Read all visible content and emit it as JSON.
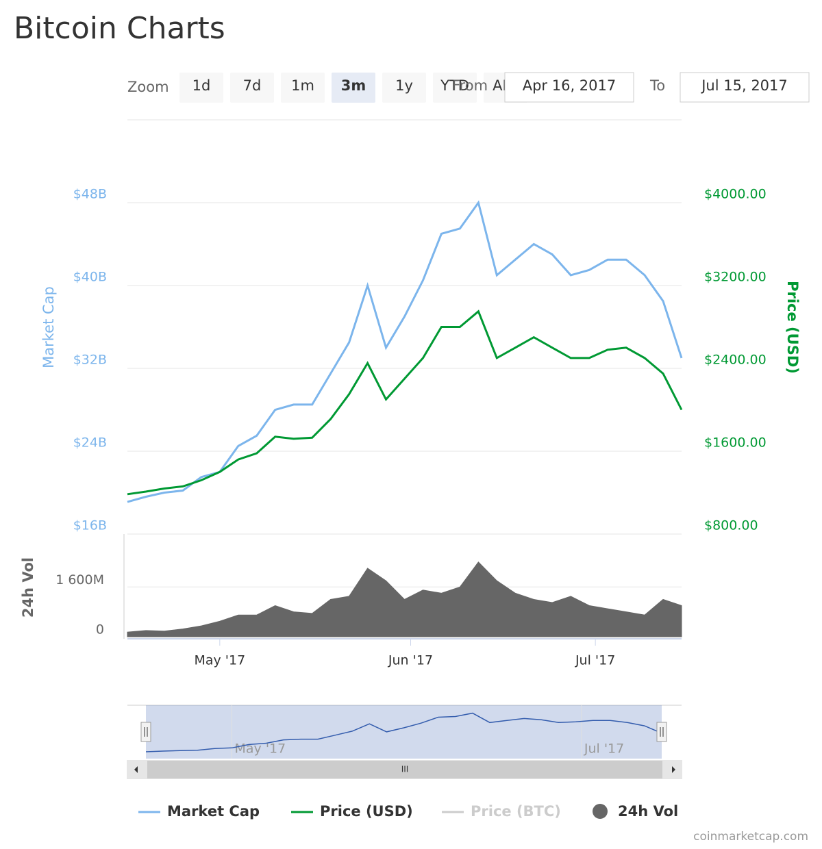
{
  "header": {
    "title": "Bitcoin Charts"
  },
  "controls": {
    "zoom_label": "Zoom",
    "zoom_buttons": [
      "1d",
      "7d",
      "1m",
      "3m",
      "1y",
      "YTD",
      "ALL"
    ],
    "active_button": "3m",
    "from_label": "From",
    "from": "Apr 16, 2017",
    "to_label": "To",
    "to": "Jul 15, 2017"
  },
  "chart_data": [
    {
      "type": "line",
      "ylabel": "Market Cap",
      "y2label": "Price (USD)",
      "x": [
        "2017-04-16",
        "2017-04-19",
        "2017-04-22",
        "2017-04-25",
        "2017-04-28",
        "2017-05-01",
        "2017-05-04",
        "2017-05-07",
        "2017-05-10",
        "2017-05-13",
        "2017-05-16",
        "2017-05-19",
        "2017-05-22",
        "2017-05-25",
        "2017-05-28",
        "2017-05-31",
        "2017-06-03",
        "2017-06-06",
        "2017-06-09",
        "2017-06-12",
        "2017-06-15",
        "2017-06-18",
        "2017-06-21",
        "2017-06-24",
        "2017-06-27",
        "2017-06-30",
        "2017-07-03",
        "2017-07-06",
        "2017-07-09",
        "2017-07-12",
        "2017-07-15"
      ],
      "xlim": [
        "2017-04-16",
        "2017-07-15"
      ],
      "xticks": [
        {
          "value": "2017-05-01",
          "label": "May '17"
        },
        {
          "value": "2017-06-01",
          "label": "Jun '17"
        },
        {
          "value": "2017-07-01",
          "label": "Jul '17"
        }
      ],
      "ylim": [
        16,
        56
      ],
      "yticks": [
        {
          "value": 16,
          "label": "$16B"
        },
        {
          "value": 24,
          "label": "$24B"
        },
        {
          "value": 32,
          "label": "$32B"
        },
        {
          "value": 40,
          "label": "$40B"
        },
        {
          "value": 48,
          "label": "$48B"
        }
      ],
      "y2lim": [
        800,
        4800
      ],
      "y2ticks": [
        {
          "value": 800,
          "label": "$800.00"
        },
        {
          "value": 1600,
          "label": "$1600.00"
        },
        {
          "value": 2400,
          "label": "$2400.00"
        },
        {
          "value": 3200,
          "label": "$3200.00"
        },
        {
          "value": 4000,
          "label": "$4000.00"
        }
      ],
      "grid": true,
      "series": [
        {
          "name": "Market Cap",
          "color": "#7cb5ec",
          "values": [
            19.1,
            19.6,
            20.0,
            20.2,
            21.5,
            22.0,
            24.5,
            25.5,
            28.0,
            28.5,
            28.5,
            31.5,
            34.5,
            40.0,
            34.0,
            37.0,
            40.5,
            45.0,
            45.5,
            48.0,
            41.0,
            42.5,
            44.0,
            43.0,
            41.0,
            41.5,
            42.5,
            42.5,
            41.0,
            38.5,
            33.0
          ]
        },
        {
          "name": "Price (USD)",
          "color": "#009933",
          "axis": "y2",
          "values": [
            1185,
            1210,
            1240,
            1260,
            1320,
            1400,
            1520,
            1580,
            1740,
            1720,
            1730,
            1910,
            2150,
            2450,
            2100,
            2300,
            2500,
            2800,
            2800,
            2950,
            2500,
            2600,
            2700,
            2600,
            2500,
            2500,
            2580,
            2600,
            2500,
            2350,
            2000
          ]
        },
        {
          "name": "Price (BTC)",
          "color": "#cccccc",
          "visible": false
        }
      ]
    },
    {
      "type": "area",
      "ylabel": "24h Vol",
      "ylim": [
        0,
        3300
      ],
      "yticks": [
        0,
        {
          "value": 1600,
          "label": "1 600M"
        }
      ],
      "grid": true,
      "series": [
        {
          "name": "24h Vol",
          "color": "#666666",
          "values": [
            150,
            200,
            180,
            250,
            350,
            500,
            700,
            700,
            1000,
            800,
            750,
            1200,
            1300,
            2200,
            1800,
            1200,
            1500,
            1400,
            1600,
            2400,
            1800,
            1400,
            1200,
            1100,
            1300,
            1000,
            900,
            800,
            700,
            1200,
            1000
          ]
        }
      ]
    }
  ],
  "credit": "coinmarketcap.com"
}
